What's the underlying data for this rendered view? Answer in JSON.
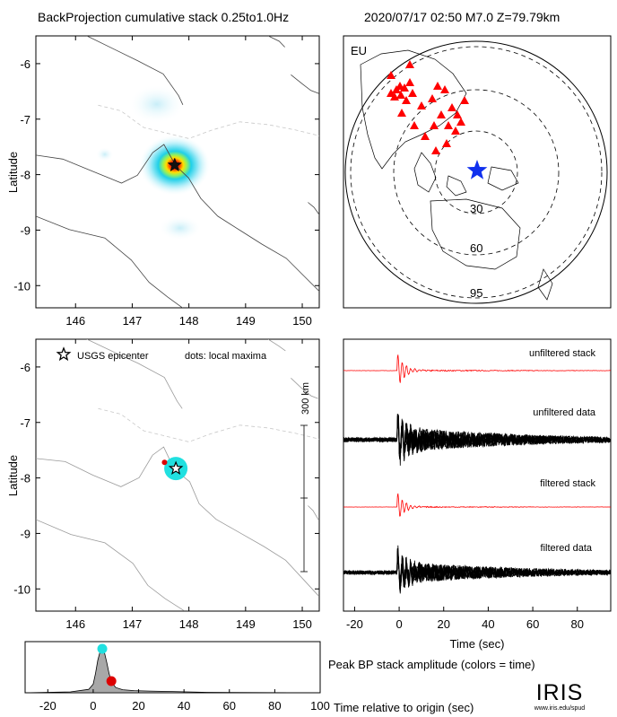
{
  "header": {
    "title": "BackProjection cumulative stack 0.25to1.0Hz",
    "event": "2020/07/17 02:50   M7.0  Z=79.79km"
  },
  "colors": {
    "stack": "#ff0000",
    "data": "#000000",
    "station": "#ff0000",
    "epicenter_globe": "#1030ee",
    "cyan": "#20e0e0",
    "peak_fill": "#a8a8a8",
    "coast": "#444444"
  },
  "map_axes": {
    "ylabel": "Latitude",
    "xticks": [
      146,
      147,
      148,
      149,
      150
    ],
    "yticks": [
      -6,
      -7,
      -8,
      -9,
      -10
    ],
    "xlim": [
      145.3,
      150.3
    ],
    "ylim": [
      -10.4,
      -5.5
    ]
  },
  "bp_map": {
    "peak": {
      "lon": 147.75,
      "lat": -7.83
    }
  },
  "local_maxima_map": {
    "legend_epicenter": "USGS epicenter",
    "legend_dots": "dots: local maxima",
    "scale_label": "300 km",
    "epicenter": {
      "lon": 147.77,
      "lat": -7.83
    },
    "maxima": [
      {
        "lon": 147.77,
        "lat": -7.83,
        "color": "#20e0e0",
        "size": 13
      },
      {
        "lon": 147.57,
        "lat": -7.72,
        "color": "#dd0000",
        "size": 3
      }
    ]
  },
  "globe": {
    "label": "EU",
    "ring_labels": [
      "30",
      "60",
      "95"
    ],
    "stations_count": 28
  },
  "traces": {
    "labels": [
      "unfiltered stack",
      "unfiltered data",
      "filtered stack",
      "filtered data"
    ],
    "xlabel": "Time (sec)",
    "xticks": [
      -20,
      0,
      20,
      40,
      60,
      80
    ],
    "xlim": [
      -25,
      95
    ]
  },
  "chart_data": [
    {
      "type": "line",
      "title": "Peak BP stack amplitude (colors = time)",
      "xlabel": "Time relative to origin (sec)",
      "x_ticks": [
        -20,
        0,
        20,
        40,
        60,
        80,
        100
      ],
      "xlim": [
        -30,
        100
      ],
      "x": [
        -30,
        -10,
        -2,
        0,
        1,
        2,
        3,
        4,
        5,
        6,
        7,
        8,
        10,
        13,
        18,
        25,
        35,
        50,
        100
      ],
      "y": [
        0,
        0.02,
        0.08,
        0.2,
        0.45,
        0.75,
        0.95,
        1.0,
        0.92,
        0.7,
        0.45,
        0.25,
        0.12,
        0.07,
        0.05,
        0.04,
        0.03,
        0.01,
        0
      ],
      "markers": [
        {
          "time": 4,
          "color": "#20e0e0"
        },
        {
          "time": 8,
          "color": "#dd0000"
        }
      ]
    }
  ],
  "logo": "IRIS",
  "logo_sub": "www.iris.edu/spud"
}
